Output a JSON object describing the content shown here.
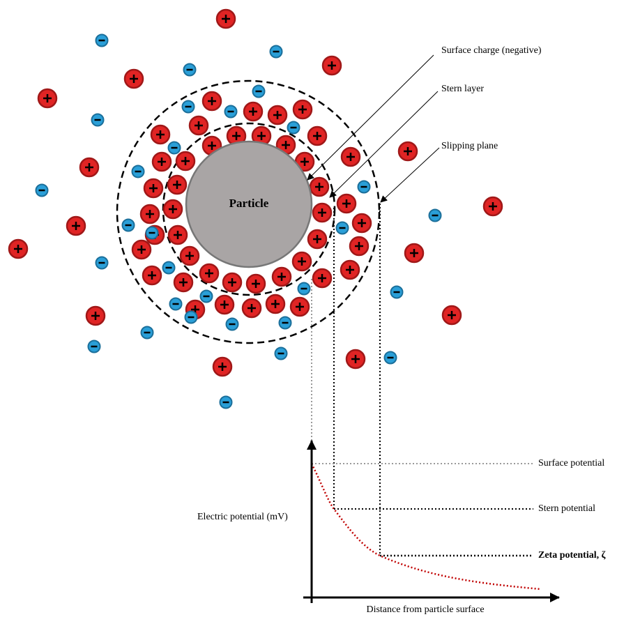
{
  "particle_label": "Particle",
  "annotations": {
    "surface_charge": "Surface charge (negative)",
    "stern_layer": "Stern layer",
    "slipping_plane": "Slipping plane"
  },
  "potentials": {
    "surface": "Surface potential",
    "stern": "Stern potential",
    "zeta": "Zeta potential, ζ"
  },
  "axes": {
    "y_label": "Electric potential (mV)",
    "x_label": "Distance from particle surface"
  }
}
